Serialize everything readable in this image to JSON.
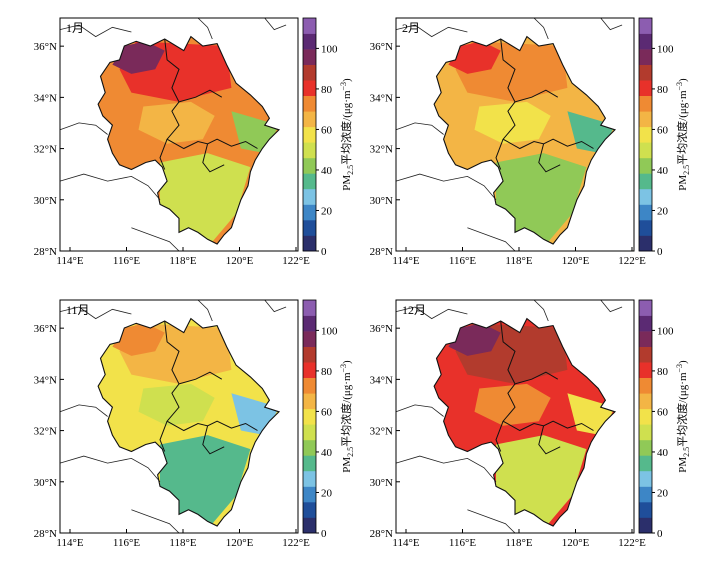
{
  "figure": {
    "colorbar_title": "PM",
    "colorbar_sub": "2.5",
    "colorbar_suffix": "平均浓度/(μg·m",
    "colorbar_exp": "−3",
    "colorbar_close": ")",
    "colorbar_ticks": [
      "0",
      "20",
      "40",
      "60",
      "80",
      "100"
    ],
    "colorbar_colors": [
      "#2b2f6b",
      "#1f4e9a",
      "#3d86c6",
      "#7cc3e4",
      "#55b98c",
      "#90c957",
      "#cfe04f",
      "#f2e24a",
      "#f3b545",
      "#ef8a33",
      "#e8312a",
      "#b23b2d",
      "#7a2a5a",
      "#5b2a73",
      "#8c5db0"
    ],
    "x_ticks": [
      "114°E",
      "116°E",
      "118°E",
      "120°E",
      "122°E"
    ],
    "y_ticks": [
      "28°N",
      "30°N",
      "32°N",
      "34°N",
      "36°N"
    ]
  },
  "panels": [
    {
      "label": "1月",
      "palette": {
        "base": "#ef8a33",
        "north": "#e8312a",
        "northwest": "#7a2a5a",
        "south": "#cfe04f",
        "coast": "#90c957",
        "center": "#f3b545"
      }
    },
    {
      "label": "2月",
      "palette": {
        "base": "#f3b545",
        "north": "#ef8a33",
        "northwest": "#e8312a",
        "south": "#90c957",
        "coast": "#55b98c",
        "center": "#f2e24a"
      }
    },
    {
      "label": "11月",
      "palette": {
        "base": "#f2e24a",
        "north": "#f3b545",
        "northwest": "#ef8a33",
        "south": "#55b98c",
        "coast": "#7cc3e4",
        "center": "#cfe04f"
      }
    },
    {
      "label": "12月",
      "palette": {
        "base": "#e8312a",
        "north": "#b23b2d",
        "northwest": "#7a2a5a",
        "south": "#cfe04f",
        "coast": "#f2e24a",
        "center": "#ef8a33"
      }
    }
  ]
}
